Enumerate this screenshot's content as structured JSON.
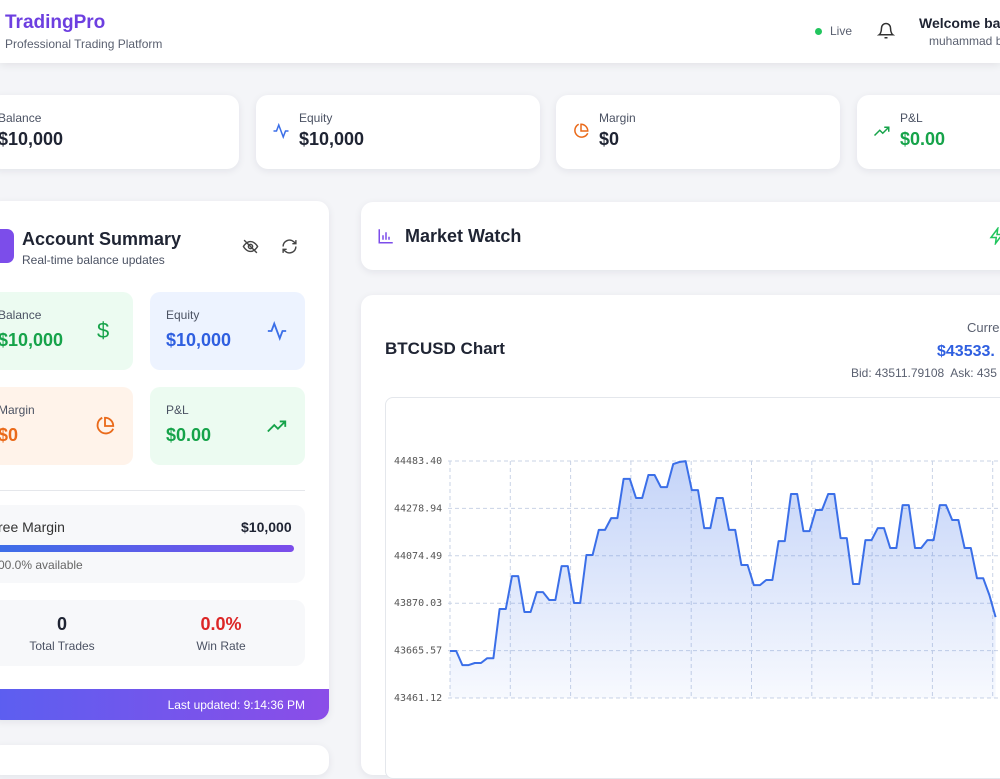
{
  "header": {
    "brand": "TradingPro",
    "tagline": "Professional Trading Platform",
    "status": "Live",
    "welcome": "Welcome ba",
    "user": "muhammad b"
  },
  "stats": [
    {
      "label": "Balance",
      "value": "$10,000"
    },
    {
      "label": "Equity",
      "value": "$10,000"
    },
    {
      "label": "Margin",
      "value": "$0"
    },
    {
      "label": "P&L",
      "value": "$0.00"
    }
  ],
  "account_summary": {
    "title": "Account Summary",
    "subtitle": "Real-time balance updates",
    "cards": [
      {
        "label": "Balance",
        "value": "$10,000"
      },
      {
        "label": "Equity",
        "value": "$10,000"
      },
      {
        "label": "Margin",
        "value": "$0"
      },
      {
        "label": "P&L",
        "value": "$0.00"
      }
    ],
    "free_margin": {
      "label": "ree Margin",
      "value": "$10,000",
      "note": "00.0% available"
    },
    "total_trades": {
      "value": "0",
      "label": "Total Trades"
    },
    "win_rate": {
      "value": "0.0%",
      "label": "Win Rate"
    },
    "last_updated": "Last updated: 9:14:36 PM"
  },
  "market_watch": {
    "title": "Market Watch"
  },
  "chart_panel": {
    "title": "BTCUSD Chart",
    "price_label": "Curre",
    "price": "$43533.",
    "bid_ask": "Bid: 43511.79108  Ask: 435"
  },
  "chart_data": {
    "type": "line",
    "color": "#3b6fe8",
    "grid": true,
    "ylim": [
      43461.12,
      44483.4
    ],
    "yticks": [
      43461.12,
      43665.57,
      43870.03,
      44074.49,
      44278.94,
      {
        "value": 44483.4,
        "label": "44483.40"
      }
    ],
    "values": [
      43664,
      43664,
      43603,
      43603,
      43612,
      43612,
      43633,
      43633,
      43845,
      43845,
      43987,
      43987,
      43832,
      43832,
      43918,
      43918,
      43884,
      43884,
      44030,
      44030,
      43871,
      43871,
      44078,
      44078,
      44186,
      44186,
      44237,
      44237,
      44406,
      44406,
      44324,
      44324,
      44423,
      44423,
      44371,
      44371,
      44470,
      44479,
      44483,
      44358,
      44358,
      44194,
      44194,
      44324,
      44324,
      44186,
      44186,
      44035,
      44035,
      43948,
      43948,
      43970,
      43970,
      44138,
      44138,
      44341,
      44341,
      44181,
      44181,
      44272,
      44272,
      44341,
      44341,
      44151,
      44151,
      43953,
      43953,
      44142,
      44142,
      44194,
      44194,
      44108,
      44108,
      44293,
      44293,
      44108,
      44108,
      44142,
      44142,
      44293,
      44293,
      44229,
      44229,
      44108,
      44108,
      43978,
      43978,
      43905,
      43810
    ]
  }
}
